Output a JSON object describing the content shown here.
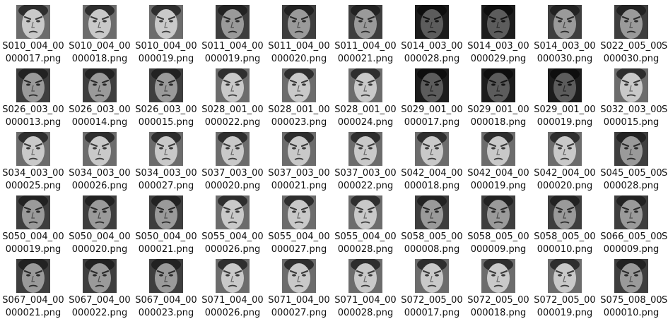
{
  "items": [
    {
      "name_line1": "S010_004_00",
      "name_line2": "000017.png",
      "tone": "light"
    },
    {
      "name_line1": "S010_004_00",
      "name_line2": "000018.png",
      "tone": "light"
    },
    {
      "name_line1": "S010_004_00",
      "name_line2": "000019.png",
      "tone": "light"
    },
    {
      "name_line1": "S011_004_00",
      "name_line2": "000019.png",
      "tone": "mid"
    },
    {
      "name_line1": "S011_004_00",
      "name_line2": "000020.png",
      "tone": "mid"
    },
    {
      "name_line1": "S011_004_00",
      "name_line2": "000021.png",
      "tone": "mid"
    },
    {
      "name_line1": "S014_003_00",
      "name_line2": "000028.png",
      "tone": "dark"
    },
    {
      "name_line1": "S014_003_00",
      "name_line2": "000029.png",
      "tone": "dark"
    },
    {
      "name_line1": "S014_003_00",
      "name_line2": "000030.png",
      "tone": "mid"
    },
    {
      "name_line1": "S022_005_00",
      "name_line2": "000030.png",
      "tone": "mid"
    },
    {
      "name_line1": "S026_003_00",
      "name_line2": "000013.png",
      "tone": "mid"
    },
    {
      "name_line1": "S026_003_00",
      "name_line2": "000014.png",
      "tone": "mid"
    },
    {
      "name_line1": "S026_003_00",
      "name_line2": "000015.png",
      "tone": "mid"
    },
    {
      "name_line1": "S028_001_00",
      "name_line2": "000022.png",
      "tone": "light"
    },
    {
      "name_line1": "S028_001_00",
      "name_line2": "000023.png",
      "tone": "light"
    },
    {
      "name_line1": "S028_001_00",
      "name_line2": "000024.png",
      "tone": "light"
    },
    {
      "name_line1": "S029_001_00",
      "name_line2": "000017.png",
      "tone": "dark"
    },
    {
      "name_line1": "S029_001_00",
      "name_line2": "000018.png",
      "tone": "dark"
    },
    {
      "name_line1": "S029_001_00",
      "name_line2": "000019.png",
      "tone": "dark"
    },
    {
      "name_line1": "S032_003_00",
      "name_line2": "000015.png",
      "tone": "light"
    },
    {
      "name_line1": "S034_003_00",
      "name_line2": "000025.png",
      "tone": "light"
    },
    {
      "name_line1": "S034_003_00",
      "name_line2": "000026.png",
      "tone": "light"
    },
    {
      "name_line1": "S034_003_00",
      "name_line2": "000027.png",
      "tone": "light"
    },
    {
      "name_line1": "S037_003_00",
      "name_line2": "000020.png",
      "tone": "light"
    },
    {
      "name_line1": "S037_003_00",
      "name_line2": "000021.png",
      "tone": "light"
    },
    {
      "name_line1": "S037_003_00",
      "name_line2": "000022.png",
      "tone": "light"
    },
    {
      "name_line1": "S042_004_00",
      "name_line2": "000018.png",
      "tone": "light"
    },
    {
      "name_line1": "S042_004_00",
      "name_line2": "000019.png",
      "tone": "light"
    },
    {
      "name_line1": "S042_004_00",
      "name_line2": "000020.png",
      "tone": "light"
    },
    {
      "name_line1": "S045_005_00",
      "name_line2": "000028.png",
      "tone": "mid"
    },
    {
      "name_line1": "S050_004_00",
      "name_line2": "000019.png",
      "tone": "mid"
    },
    {
      "name_line1": "S050_004_00",
      "name_line2": "000020.png",
      "tone": "mid"
    },
    {
      "name_line1": "S050_004_00",
      "name_line2": "000021.png",
      "tone": "mid"
    },
    {
      "name_line1": "S055_004_00",
      "name_line2": "000026.png",
      "tone": "light"
    },
    {
      "name_line1": "S055_004_00",
      "name_line2": "000027.png",
      "tone": "light"
    },
    {
      "name_line1": "S055_004_00",
      "name_line2": "000028.png",
      "tone": "light"
    },
    {
      "name_line1": "S058_005_00",
      "name_line2": "000008.png",
      "tone": "mid"
    },
    {
      "name_line1": "S058_005_00",
      "name_line2": "000009.png",
      "tone": "mid"
    },
    {
      "name_line1": "S058_005_00",
      "name_line2": "000010.png",
      "tone": "mid"
    },
    {
      "name_line1": "S066_005_00",
      "name_line2": "000009.png",
      "tone": "mid"
    },
    {
      "name_line1": "S067_004_00",
      "name_line2": "000021.png",
      "tone": "mid"
    },
    {
      "name_line1": "S067_004_00",
      "name_line2": "000022.png",
      "tone": "mid"
    },
    {
      "name_line1": "S067_004_00",
      "name_line2": "000023.png",
      "tone": "mid"
    },
    {
      "name_line1": "S071_004_00",
      "name_line2": "000026.png",
      "tone": "light"
    },
    {
      "name_line1": "S071_004_00",
      "name_line2": "000027.png",
      "tone": "light"
    },
    {
      "name_line1": "S071_004_00",
      "name_line2": "000028.png",
      "tone": "light"
    },
    {
      "name_line1": "S072_005_00",
      "name_line2": "000017.png",
      "tone": "light"
    },
    {
      "name_line1": "S072_005_00",
      "name_line2": "000018.png",
      "tone": "light"
    },
    {
      "name_line1": "S072_005_00",
      "name_line2": "000019.png",
      "tone": "light"
    },
    {
      "name_line1": "S075_008_00",
      "name_line2": "000010.png",
      "tone": "mid"
    }
  ],
  "overflow_items": [
    {
      "name_line1": "S"
    },
    {
      "name_line1": "S"
    },
    {
      "name_line1": "S"
    },
    {
      "name_line1": "S"
    },
    {
      "name_line1": "S"
    }
  ],
  "palette": {
    "light": {
      "bg": "#6c6c6c",
      "skin": "#c9c9c9",
      "hair": "#2e2e2e",
      "feat": "#3a3a3a"
    },
    "mid": {
      "bg": "#3e3e3e",
      "skin": "#9a9a9a",
      "hair": "#222222",
      "feat": "#2a2a2a"
    },
    "dark": {
      "bg": "#1c1c1c",
      "skin": "#5c5c5c",
      "hair": "#0e0e0e",
      "feat": "#151515"
    }
  }
}
